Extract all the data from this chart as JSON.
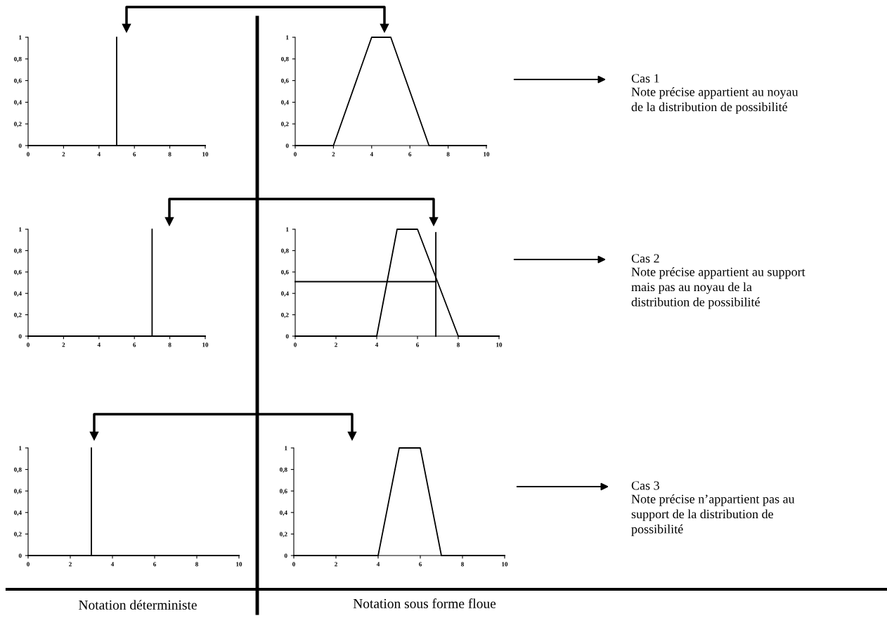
{
  "chart_data": [
    {
      "type": "line",
      "xlim": [
        0,
        10
      ],
      "ylim": [
        0,
        1
      ],
      "xticks": [
        0,
        2,
        4,
        6,
        8,
        10
      ],
      "yticks": [
        0,
        {
          "value": 0.2,
          "label": "0,2"
        },
        {
          "value": 0.4,
          "label": "0,4"
        },
        {
          "value": 0.6,
          "label": "0,6"
        },
        {
          "value": 0.8,
          "label": "0,8"
        },
        1
      ],
      "grid": false,
      "marker": "none",
      "line_style": "solid",
      "series": [
        {
          "color": "#000000",
          "x": [
            0,
            5,
            5,
            5,
            10
          ],
          "values": [
            0,
            0,
            1,
            0,
            0
          ]
        }
      ]
    },
    {
      "type": "line",
      "xlim": [
        0,
        10
      ],
      "ylim": [
        0,
        1
      ],
      "xticks": [
        0,
        2,
        4,
        6,
        8,
        10
      ],
      "yticks": [
        0,
        {
          "value": 0.2,
          "label": "0,2"
        },
        {
          "value": 0.4,
          "label": "0,4"
        },
        {
          "value": 0.6,
          "label": "0,6"
        },
        {
          "value": 0.8,
          "label": "0,8"
        },
        1
      ],
      "grid": false,
      "marker": "none",
      "line_style": "solid",
      "series": [
        {
          "color": "#000000",
          "x": [
            0,
            2,
            4,
            5,
            7,
            10
          ],
          "values": [
            0,
            0,
            1,
            1,
            0,
            0
          ]
        }
      ],
      "annotations": [
        "Cas 1",
        "Note précise appartient au noyau\nde la distribution de possibilité"
      ]
    },
    {
      "type": "line",
      "xlim": [
        0,
        10
      ],
      "ylim": [
        0,
        1
      ],
      "xticks": [
        0,
        2,
        4,
        6,
        8,
        10
      ],
      "yticks": [
        0,
        {
          "value": 0.2,
          "label": "0,2"
        },
        {
          "value": 0.4,
          "label": "0,4"
        },
        {
          "value": 0.6,
          "label": "0,6"
        },
        {
          "value": 0.8,
          "label": "0,8"
        },
        1
      ],
      "grid": false,
      "marker": "none",
      "line_style": "solid",
      "series": [
        {
          "color": "#000000",
          "x": [
            0,
            7,
            7,
            7,
            10
          ],
          "values": [
            0,
            0,
            1,
            0,
            0
          ]
        }
      ]
    },
    {
      "type": "line",
      "xlim": [
        0,
        10
      ],
      "ylim": [
        0,
        1
      ],
      "xticks": [
        0,
        2,
        4,
        6,
        8,
        10
      ],
      "yticks": [
        0,
        {
          "value": 0.2,
          "label": "0,2"
        },
        {
          "value": 0.4,
          "label": "0,4"
        },
        {
          "value": 0.6,
          "label": "0,6"
        },
        {
          "value": 0.8,
          "label": "0,8"
        },
        1
      ],
      "grid": false,
      "marker": "none",
      "line_style": "solid",
      "series": [
        {
          "color": "#000000",
          "x": [
            0,
            4,
            5,
            6,
            8,
            10
          ],
          "values": [
            0,
            0,
            1,
            1,
            0,
            0
          ]
        },
        {
          "color": "#000000",
          "x": [
            0,
            6.9,
            6.9,
            6.9
          ],
          "values": [
            0.51,
            0.51,
            0.97,
            0
          ]
        }
      ],
      "annotations": [
        "Cas 2",
        "Note précise appartient au support\nmais pas au noyau de la\ndistribution de possibilité"
      ]
    },
    {
      "type": "line",
      "xlim": [
        0,
        10
      ],
      "ylim": [
        0,
        1
      ],
      "xticks": [
        0,
        2,
        4,
        6,
        8,
        10
      ],
      "yticks": [
        0,
        {
          "value": 0.2,
          "label": "0,2"
        },
        {
          "value": 0.4,
          "label": "0,4"
        },
        {
          "value": 0.6,
          "label": "0,6"
        },
        {
          "value": 0.8,
          "label": "0,8"
        },
        1
      ],
      "grid": false,
      "marker": "none",
      "line_style": "solid",
      "series": [
        {
          "color": "#000000",
          "x": [
            0,
            3,
            3,
            3,
            10
          ],
          "values": [
            0,
            0,
            1,
            0,
            0
          ]
        }
      ],
      "annotations": [
        "Notation déterministe"
      ]
    },
    {
      "type": "line",
      "xlim": [
        0,
        10
      ],
      "ylim": [
        0,
        1
      ],
      "xticks": [
        0,
        2,
        4,
        6,
        8,
        10
      ],
      "yticks": [
        0,
        {
          "value": 0.2,
          "label": "0,2"
        },
        {
          "value": 0.4,
          "label": "0,4"
        },
        {
          "value": 0.6,
          "label": "0,6"
        },
        {
          "value": 0.8,
          "label": "0,8"
        },
        1
      ],
      "grid": false,
      "marker": "none",
      "line_style": "solid",
      "series": [
        {
          "color": "#000000",
          "x": [
            0,
            4,
            5,
            6,
            7,
            10
          ],
          "values": [
            0,
            0,
            1,
            1,
            0,
            0
          ]
        }
      ],
      "annotations": [
        "Cas 3",
        "Note précise n’appartient pas au\nsupport de la distribution de\npossibilité",
        "Notation sous forme floue"
      ]
    }
  ]
}
